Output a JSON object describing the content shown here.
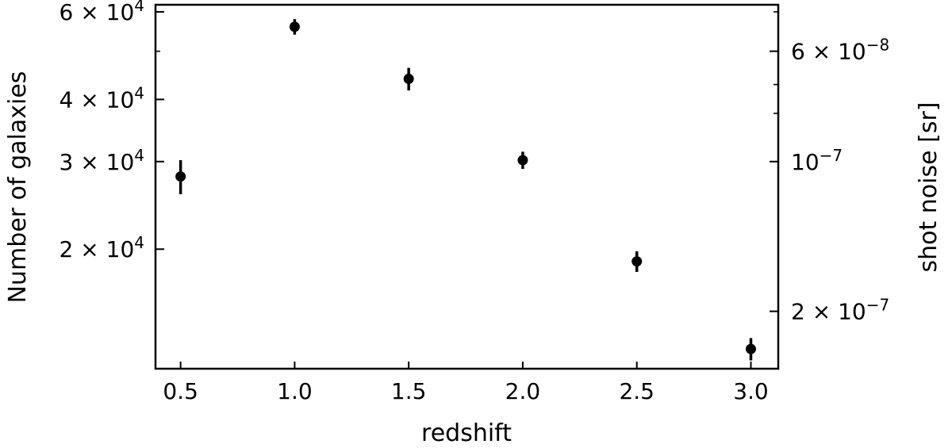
{
  "chart_data": {
    "type": "scatter",
    "xlabel": "redshift",
    "ylabel": "Number of galaxies",
    "y2label": "shot noise [sr]",
    "xlim": [
      0.39,
      3.12
    ],
    "ylim": [
      11500,
      62000
    ],
    "yscale": "log",
    "y2scale": "log",
    "grid": false,
    "xticks": [
      {
        "value": 0.5,
        "label": "0.5"
      },
      {
        "value": 1.0,
        "label": "1.0"
      },
      {
        "value": 1.5,
        "label": "1.5"
      },
      {
        "value": 2.0,
        "label": "2.0"
      },
      {
        "value": 2.5,
        "label": "2.5"
      },
      {
        "value": 3.0,
        "label": "3.0"
      }
    ],
    "yticks_major": [
      {
        "value": 20000,
        "base": "2 × 10",
        "exp": "4"
      },
      {
        "value": 30000,
        "base": "3 × 10",
        "exp": "4"
      },
      {
        "value": 40000,
        "base": "4 × 10",
        "exp": "4"
      },
      {
        "value": 60000,
        "base": "6 × 10",
        "exp": "4"
      }
    ],
    "yticks_minor": [
      50000
    ],
    "y2ticks_major": [
      {
        "value": 6e-08,
        "base": "6 × 10",
        "exp": "−8"
      },
      {
        "value": 1e-07,
        "base": "10",
        "exp": "−7"
      },
      {
        "value": 2e-07,
        "base": "2 × 10",
        "exp": "−7"
      }
    ],
    "y2ticks_minor": [
      5e-08,
      7e-08,
      8e-08
    ],
    "points": [
      {
        "x": 0.5,
        "y": 28000,
        "yerr_low": 2200,
        "yerr_high": 2200
      },
      {
        "x": 1.0,
        "y": 56000,
        "yerr_low": 2000,
        "yerr_high": 2000
      },
      {
        "x": 1.5,
        "y": 44000,
        "yerr_low": 2300,
        "yerr_high": 2300
      },
      {
        "x": 2.0,
        "y": 30200,
        "yerr_low": 1200,
        "yerr_high": 1200
      },
      {
        "x": 2.5,
        "y": 18900,
        "yerr_low": 900,
        "yerr_high": 900
      },
      {
        "x": 3.0,
        "y": 12600,
        "yerr_low": 650,
        "yerr_high": 650
      }
    ],
    "marker_color": "#000000"
  }
}
